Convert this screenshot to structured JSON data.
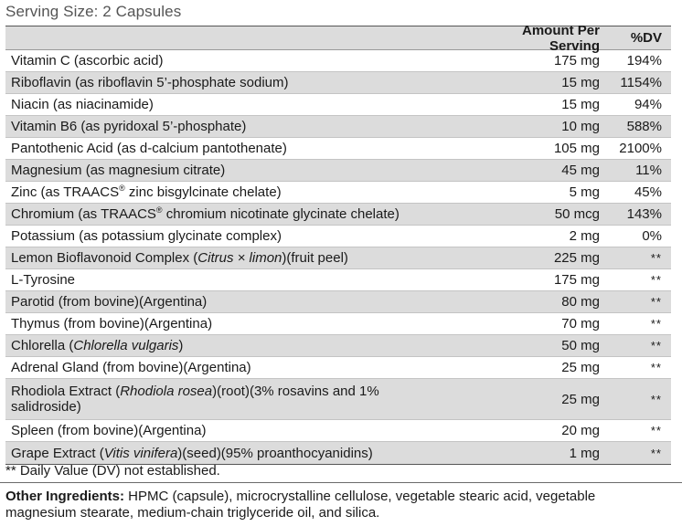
{
  "serving_size": "Serving Size: 2 Capsules",
  "header": {
    "amount": "Amount Per Serving",
    "dv": "%DV"
  },
  "rows": [
    {
      "name": "Vitamin C (ascorbic acid)",
      "amount": "175 mg",
      "dv": "194%"
    },
    {
      "name": "Riboflavin (as riboflavin 5’-phosphate sodium)",
      "amount": "15 mg",
      "dv": "1154%"
    },
    {
      "name": "Niacin (as niacinamide)",
      "amount": "15 mg",
      "dv": "94%"
    },
    {
      "name": "Vitamin B6 (as pyridoxal 5’-phosphate)",
      "amount": "10 mg",
      "dv": "588%"
    },
    {
      "name": "Pantothenic Acid (as d-calcium pantothenate)",
      "amount": "105 mg",
      "dv": "2100%"
    },
    {
      "name": "Magnesium (as magnesium citrate)",
      "amount": "45 mg",
      "dv": "11%"
    },
    {
      "name_a": "Zinc (as TRAACS",
      "name_sup": "®",
      "name_b": " zinc bisgylcinate chelate)",
      "amount": "5 mg",
      "dv": "45%"
    },
    {
      "name_a": "Chromium (as TRAACS",
      "name_sup": "®",
      "name_b": " chromium nicotinate glycinate chelate)",
      "amount": "50 mcg",
      "dv": "143%"
    },
    {
      "name": "Potassium (as potassium glycinate complex)",
      "amount": "2 mg",
      "dv": "0%"
    },
    {
      "name_a": "Lemon Bioflavonoid Complex (",
      "name_i": "Citrus × limon",
      "name_b": ")(fruit peel)",
      "amount": "225 mg",
      "dv": "**"
    },
    {
      "name": "L-Tyrosine",
      "amount": "175 mg",
      "dv": "**"
    },
    {
      "name": "Parotid (from bovine)(Argentina)",
      "amount": "80 mg",
      "dv": "**"
    },
    {
      "name": "Thymus (from bovine)(Argentina)",
      "amount": "70 mg",
      "dv": "**"
    },
    {
      "name_a": "Chlorella (",
      "name_i": "Chlorella vulgaris",
      "name_b": ")",
      "amount": "50 mg",
      "dv": "**"
    },
    {
      "name": "Adrenal Gland (from bovine)(Argentina)",
      "amount": "25 mg",
      "dv": "**"
    },
    {
      "name_a": "Rhodiola Extract (",
      "name_i": "Rhodiola rosea",
      "name_b": ")(root)(3% rosavins and 1% salidroside)",
      "amount": "25 mg",
      "dv": "**"
    },
    {
      "name": "Spleen (from bovine)(Argentina)",
      "amount": "20 mg",
      "dv": "**"
    },
    {
      "name_a": "Grape Extract (",
      "name_i": "Vitis vinifera",
      "name_b": ")(seed)(95% proanthocyanidins)",
      "amount": "1 mg",
      "dv": "**"
    }
  ],
  "footnote": "** Daily Value (DV) not established.",
  "other_ingredients": {
    "label": "Other Ingredients:",
    "text": " HPMC (capsule), microcrystalline cellulose, vegetable stearic acid, vegetable magnesium stearate, medium-chain triglyceride oil, and silica."
  }
}
